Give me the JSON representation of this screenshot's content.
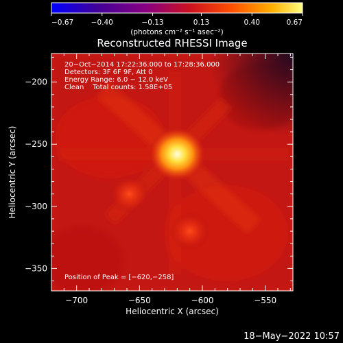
{
  "chart_data": {
    "type": "heatmap",
    "title": "Reconstructed RHESSI Image",
    "xlabel": "Heliocentric X (arcsec)",
    "ylabel": "Heliocentric Y (arcsec)",
    "xlim": [
      -720,
      -528
    ],
    "ylim": [
      -368,
      -177
    ],
    "x_ticks": [
      -700,
      -650,
      -600,
      -550
    ],
    "x_tick_labels": [
      "−700",
      "−650",
      "−600",
      "−550"
    ],
    "y_ticks": [
      -200,
      -250,
      -300,
      -350
    ],
    "y_tick_labels": [
      "−200",
      "−250",
      "−300",
      "−350"
    ],
    "colorbar": {
      "range": [
        -0.67,
        0.67
      ],
      "ticks": [
        -0.67,
        -0.4,
        -0.13,
        0.13,
        0.4,
        0.67
      ],
      "tick_labels": [
        "−0.67",
        "−0.40",
        "−0.13",
        "0.13",
        "0.40",
        "0.67"
      ],
      "unit_label": "(photons cm⁻² s⁻¹ asec⁻²)",
      "colors": [
        "#0000ff",
        "#40009a",
        "#8a0080",
        "#cc1020",
        "#ff5000",
        "#ffb000",
        "#ffff80"
      ]
    },
    "annotations": [
      "20−Oct−2014 17:22:36.000 to 17:28:36.000",
      "Detectors: 3F 6F 9F, Att 0",
      "Energy Range: 6.0 − 12.0 keV",
      "Clean    Total counts: 1.58E+05"
    ],
    "peak_label": "Position of Peak = [−620,−258]",
    "sources": [
      {
        "x": -620,
        "y": -258,
        "value": 0.67
      },
      {
        "x": -658,
        "y": -290,
        "value": 0.2
      },
      {
        "x": -610,
        "y": -320,
        "value": 0.16
      }
    ],
    "background_level": 0.18
  },
  "footer": {
    "timestamp": "18−May−2022 10:57"
  }
}
